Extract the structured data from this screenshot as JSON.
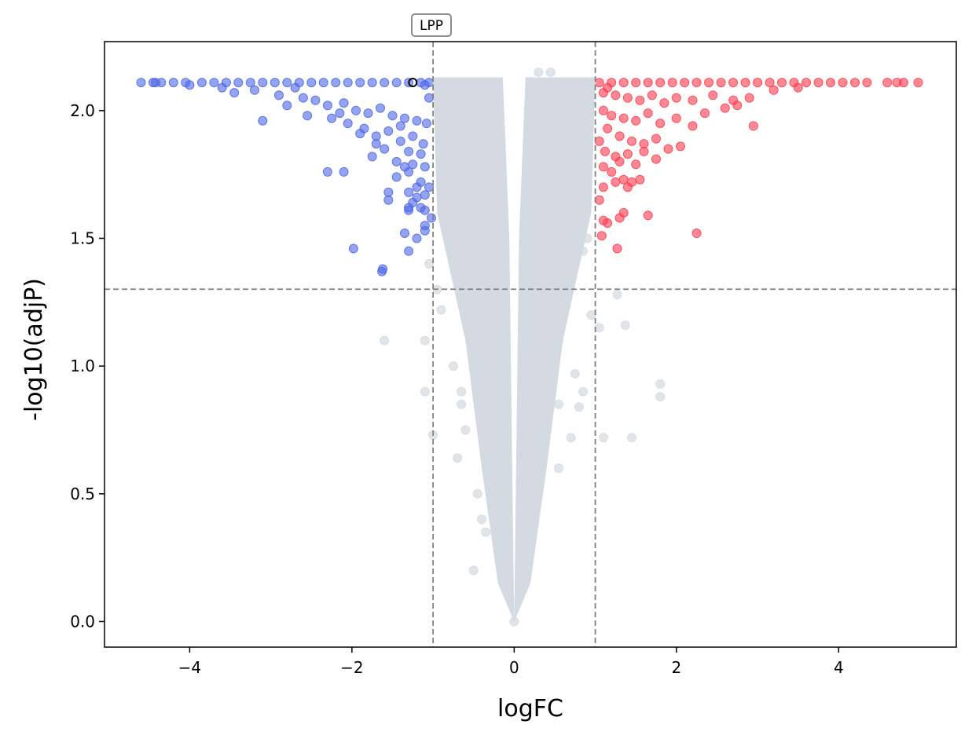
{
  "chart_data": {
    "type": "scatter",
    "title": "",
    "xlabel": "logFC",
    "ylabel": "-log10(adjP)",
    "xlim": [
      -5.05,
      5.45
    ],
    "ylim": [
      -0.1,
      2.27
    ],
    "xticks": [
      -4,
      -2,
      0,
      2,
      4
    ],
    "xtick_labels": [
      "−4",
      "−2",
      "0",
      "2",
      "4"
    ],
    "yticks": [
      0.0,
      0.5,
      1.0,
      1.5,
      2.0
    ],
    "ytick_labels": [
      "0.0",
      "0.5",
      "1.0",
      "1.5",
      "2.0"
    ],
    "grid": false,
    "thresholds": {
      "logFC": [
        -1,
        1
      ],
      "neg_log10_adjP": 1.301
    },
    "colors": {
      "down": "#4F67E6",
      "up": "#FF3B4E",
      "ns": "#D3DAE1",
      "threshold_line": "#808080",
      "highlight_edge": "#000000"
    },
    "series": [
      {
        "name": "down",
        "points": [
          [
            -4.6,
            2.11
          ],
          [
            -4.45,
            2.11
          ],
          [
            -4.42,
            2.11
          ],
          [
            -4.35,
            2.11
          ],
          [
            -4.2,
            2.11
          ],
          [
            -4.05,
            2.11
          ],
          [
            -3.85,
            2.11
          ],
          [
            -3.7,
            2.11
          ],
          [
            -3.55,
            2.11
          ],
          [
            -3.4,
            2.11
          ],
          [
            -3.25,
            2.11
          ],
          [
            -3.1,
            2.11
          ],
          [
            -2.95,
            2.11
          ],
          [
            -2.8,
            2.11
          ],
          [
            -2.65,
            2.11
          ],
          [
            -2.5,
            2.11
          ],
          [
            -2.35,
            2.11
          ],
          [
            -2.2,
            2.11
          ],
          [
            -2.05,
            2.11
          ],
          [
            -1.9,
            2.11
          ],
          [
            -1.75,
            2.11
          ],
          [
            -1.6,
            2.11
          ],
          [
            -1.45,
            2.11
          ],
          [
            -1.3,
            2.11
          ],
          [
            -1.15,
            2.11
          ],
          [
            -1.05,
            2.11
          ],
          [
            -3.45,
            2.07
          ],
          [
            -3.2,
            2.08
          ],
          [
            -2.9,
            2.06
          ],
          [
            -2.6,
            2.05
          ],
          [
            -2.45,
            2.04
          ],
          [
            -2.3,
            2.02
          ],
          [
            -2.1,
            2.03
          ],
          [
            -1.95,
            2.0
          ],
          [
            -1.8,
            1.99
          ],
          [
            -1.65,
            2.01
          ],
          [
            -1.5,
            1.98
          ],
          [
            -1.35,
            1.97
          ],
          [
            -1.2,
            1.96
          ],
          [
            -1.08,
            1.95
          ],
          [
            -3.1,
            1.96
          ],
          [
            -2.8,
            2.02
          ],
          [
            -2.55,
            1.98
          ],
          [
            -2.25,
            1.97
          ],
          [
            -2.05,
            1.95
          ],
          [
            -1.85,
            1.93
          ],
          [
            -1.7,
            1.9
          ],
          [
            -1.55,
            1.92
          ],
          [
            -1.4,
            1.88
          ],
          [
            -1.25,
            1.9
          ],
          [
            -1.12,
            1.87
          ],
          [
            -1.7,
            1.87
          ],
          [
            -1.6,
            1.85
          ],
          [
            -1.3,
            1.84
          ],
          [
            -1.15,
            1.83
          ],
          [
            -1.75,
            1.82
          ],
          [
            -1.45,
            1.8
          ],
          [
            -1.25,
            1.79
          ],
          [
            -1.35,
            1.78
          ],
          [
            -1.1,
            1.78
          ],
          [
            -1.3,
            1.76
          ],
          [
            -1.45,
            1.74
          ],
          [
            -1.15,
            1.72
          ],
          [
            -1.2,
            1.7
          ],
          [
            -1.3,
            1.68
          ],
          [
            -1.55,
            1.68
          ],
          [
            -1.1,
            1.67
          ],
          [
            -1.2,
            1.66
          ],
          [
            -1.55,
            1.65
          ],
          [
            -1.25,
            1.64
          ],
          [
            -1.3,
            1.62
          ],
          [
            -1.15,
            1.62
          ],
          [
            -1.1,
            1.61
          ],
          [
            -1.3,
            1.61
          ],
          [
            -1.1,
            1.55
          ],
          [
            -1.1,
            1.53
          ],
          [
            -1.35,
            1.52
          ],
          [
            -1.2,
            1.5
          ],
          [
            -2.3,
            1.76
          ],
          [
            -2.1,
            1.76
          ],
          [
            -1.3,
            1.45
          ],
          [
            -1.98,
            1.46
          ],
          [
            -1.62,
            1.38
          ],
          [
            -1.63,
            1.37
          ],
          [
            -1.02,
            1.58
          ],
          [
            -1.05,
            1.7
          ],
          [
            -1.4,
            1.94
          ],
          [
            -1.9,
            1.91
          ],
          [
            -2.15,
            1.99
          ],
          [
            -2.7,
            2.09
          ],
          [
            -3.6,
            2.09
          ],
          [
            -4.0,
            2.1
          ],
          [
            -1.05,
            2.05
          ],
          [
            -1.1,
            2.1
          ]
        ]
      },
      {
        "name": "up",
        "points": [
          [
            1.05,
            2.11
          ],
          [
            1.2,
            2.11
          ],
          [
            1.35,
            2.11
          ],
          [
            1.5,
            2.11
          ],
          [
            1.65,
            2.11
          ],
          [
            1.8,
            2.11
          ],
          [
            1.95,
            2.11
          ],
          [
            2.1,
            2.11
          ],
          [
            2.25,
            2.11
          ],
          [
            2.4,
            2.11
          ],
          [
            2.55,
            2.11
          ],
          [
            2.7,
            2.11
          ],
          [
            2.85,
            2.11
          ],
          [
            3.0,
            2.11
          ],
          [
            3.15,
            2.11
          ],
          [
            3.3,
            2.11
          ],
          [
            3.45,
            2.11
          ],
          [
            3.6,
            2.11
          ],
          [
            3.75,
            2.11
          ],
          [
            3.9,
            2.11
          ],
          [
            4.05,
            2.11
          ],
          [
            4.2,
            2.11
          ],
          [
            4.35,
            2.11
          ],
          [
            4.6,
            2.11
          ],
          [
            4.72,
            2.11
          ],
          [
            4.8,
            2.11
          ],
          [
            4.98,
            2.11
          ],
          [
            1.1,
            2.07
          ],
          [
            1.25,
            2.06
          ],
          [
            1.4,
            2.05
          ],
          [
            1.55,
            2.04
          ],
          [
            1.7,
            2.06
          ],
          [
            1.85,
            2.03
          ],
          [
            2.0,
            2.05
          ],
          [
            2.2,
            2.04
          ],
          [
            2.45,
            2.06
          ],
          [
            2.7,
            2.04
          ],
          [
            2.9,
            2.05
          ],
          [
            3.2,
            2.08
          ],
          [
            3.5,
            2.09
          ],
          [
            1.1,
            2.0
          ],
          [
            1.2,
            1.98
          ],
          [
            1.35,
            1.97
          ],
          [
            1.5,
            1.96
          ],
          [
            1.65,
            1.99
          ],
          [
            1.8,
            1.95
          ],
          [
            2.0,
            1.97
          ],
          [
            2.2,
            1.94
          ],
          [
            2.35,
            1.99
          ],
          [
            2.6,
            2.01
          ],
          [
            2.75,
            2.02
          ],
          [
            2.95,
            1.94
          ],
          [
            1.15,
            1.93
          ],
          [
            1.3,
            1.9
          ],
          [
            1.45,
            1.88
          ],
          [
            1.6,
            1.87
          ],
          [
            1.75,
            1.89
          ],
          [
            1.9,
            1.85
          ],
          [
            2.05,
            1.86
          ],
          [
            1.12,
            1.84
          ],
          [
            1.25,
            1.82
          ],
          [
            1.4,
            1.83
          ],
          [
            1.5,
            1.79
          ],
          [
            1.3,
            1.8
          ],
          [
            1.1,
            1.78
          ],
          [
            1.2,
            1.76
          ],
          [
            1.35,
            1.73
          ],
          [
            1.45,
            1.72
          ],
          [
            1.55,
            1.73
          ],
          [
            1.25,
            1.72
          ],
          [
            1.1,
            1.7
          ],
          [
            1.4,
            1.7
          ],
          [
            1.05,
            1.65
          ],
          [
            1.35,
            1.6
          ],
          [
            1.65,
            1.59
          ],
          [
            1.1,
            1.57
          ],
          [
            1.15,
            1.56
          ],
          [
            1.3,
            1.58
          ],
          [
            1.08,
            1.51
          ],
          [
            2.25,
            1.52
          ],
          [
            1.27,
            1.46
          ],
          [
            1.75,
            1.81
          ],
          [
            1.6,
            1.84
          ],
          [
            1.05,
            1.88
          ],
          [
            1.15,
            2.09
          ]
        ]
      },
      {
        "name": "not significant",
        "points": [
          [
            -0.95,
            2.11
          ],
          [
            -0.8,
            2.11
          ],
          [
            -0.6,
            2.11
          ],
          [
            -0.4,
            2.11
          ],
          [
            -0.2,
            2.11
          ],
          [
            0.2,
            2.11
          ],
          [
            0.4,
            2.11
          ],
          [
            0.6,
            2.11
          ],
          [
            0.8,
            2.11
          ],
          [
            0.95,
            2.11
          ],
          [
            0.3,
            2.15
          ],
          [
            0.45,
            2.15
          ],
          [
            -0.9,
            1.8
          ],
          [
            -0.7,
            1.6
          ],
          [
            -0.8,
            1.5
          ],
          [
            -0.6,
            1.4
          ],
          [
            0.8,
            1.6
          ],
          [
            0.9,
            1.5
          ],
          [
            0.7,
            1.4
          ],
          [
            0.85,
            1.45
          ],
          [
            -1.05,
            1.4
          ],
          [
            -0.95,
            1.3
          ],
          [
            -0.9,
            1.22
          ],
          [
            -1.1,
            1.1
          ],
          [
            -1.6,
            1.1
          ],
          [
            -0.5,
            1.15
          ],
          [
            0.55,
            1.1
          ],
          [
            0.95,
            1.2
          ],
          [
            1.05,
            1.15
          ],
          [
            1.27,
            1.28
          ],
          [
            1.37,
            1.16
          ],
          [
            -0.75,
            1.0
          ],
          [
            -1.1,
            0.9
          ],
          [
            -0.65,
            0.9
          ],
          [
            -0.65,
            0.85
          ],
          [
            0.75,
            0.97
          ],
          [
            0.85,
            0.9
          ],
          [
            0.55,
            0.85
          ],
          [
            0.8,
            0.84
          ],
          [
            1.8,
            0.93
          ],
          [
            1.8,
            0.88
          ],
          [
            -1.0,
            0.73
          ],
          [
            -0.6,
            0.75
          ],
          [
            -0.7,
            0.64
          ],
          [
            0.7,
            0.72
          ],
          [
            1.1,
            0.72
          ],
          [
            1.45,
            0.72
          ],
          [
            -0.45,
            0.5
          ],
          [
            -0.5,
            0.2
          ],
          [
            -0.4,
            0.4
          ],
          [
            -0.35,
            0.35
          ],
          [
            0.55,
            0.6
          ],
          [
            -0.2,
            0.3
          ],
          [
            0.2,
            0.3
          ],
          [
            -0.1,
            0.12
          ],
          [
            0.1,
            0.12
          ],
          [
            0.0,
            0.0
          ],
          [
            -0.3,
            1.9
          ],
          [
            0.3,
            1.9
          ]
        ]
      }
    ],
    "annotations": [
      {
        "label": "LPP",
        "x": -1.25,
        "y": 2.11,
        "point_style": "hollow-black"
      }
    ]
  }
}
